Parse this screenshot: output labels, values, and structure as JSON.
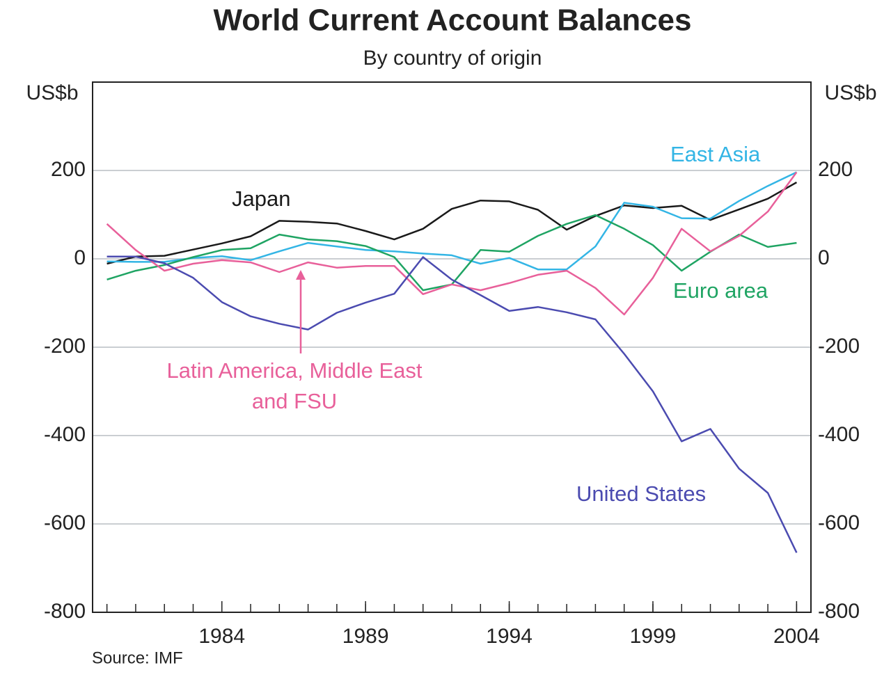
{
  "chart_data": {
    "type": "line",
    "title": "World Current Account Balances",
    "subtitle": "By country of origin",
    "ylabel": "US$b",
    "source": "Source: IMF",
    "x": [
      1980,
      1981,
      1982,
      1983,
      1984,
      1985,
      1986,
      1987,
      1988,
      1989,
      1990,
      1991,
      1992,
      1993,
      1994,
      1995,
      1996,
      1997,
      1998,
      1999,
      2000,
      2001,
      2002,
      2003,
      2004
    ],
    "xlim": [
      1979.5,
      2004.5
    ],
    "xticks": [
      1984,
      1989,
      1994,
      1999,
      2004
    ],
    "xminorticks": [
      1980,
      1981,
      1982,
      1983,
      1984,
      1985,
      1986,
      1987,
      1988,
      1989,
      1990,
      1991,
      1992,
      1993,
      1994,
      1995,
      1996,
      1997,
      1998,
      1999,
      2000,
      2001,
      2002,
      2003,
      2004
    ],
    "ylim": [
      -800,
      400
    ],
    "yticks": [
      -800,
      -600,
      -400,
      -200,
      0,
      200
    ],
    "grid": true,
    "series": [
      {
        "name": "Japan",
        "color": "#1a1a1a",
        "values": [
          -11,
          5,
          7,
          21,
          35,
          51,
          86,
          84,
          80,
          63,
          44,
          68,
          113,
          132,
          130,
          111,
          66,
          97,
          121,
          115,
          120,
          88,
          112,
          136,
          173
        ]
      },
      {
        "name": "East Asia",
        "color": "#33b5e5",
        "values": [
          -6,
          -7,
          -7,
          2,
          6,
          -3,
          17,
          36,
          28,
          20,
          17,
          12,
          8,
          -11,
          2,
          -24,
          -24,
          28,
          127,
          118,
          92,
          91,
          131,
          165,
          196
        ]
      },
      {
        "name": "Euro area",
        "color": "#1fa463",
        "values": [
          -47,
          -27,
          -14,
          4,
          20,
          24,
          55,
          44,
          40,
          29,
          4,
          -71,
          -58,
          20,
          16,
          52,
          79,
          99,
          68,
          31,
          -27,
          16,
          55,
          27,
          36
        ]
      },
      {
        "name": "Latin America, Middle East and FSU",
        "color": "#e8609a",
        "values": [
          79,
          20,
          -27,
          -11,
          -3,
          -8,
          -30,
          -8,
          -20,
          -16,
          -16,
          -80,
          -58,
          -71,
          -55,
          -36,
          -27,
          -66,
          -126,
          -43,
          68,
          17,
          52,
          107,
          196
        ]
      },
      {
        "name": "United States",
        "color": "#4b4bb0",
        "values": [
          5,
          5,
          -10,
          -43,
          -98,
          -130,
          -147,
          -160,
          -122,
          -99,
          -79,
          4,
          -47,
          -82,
          -118,
          -109,
          -121,
          -137,
          -215,
          -300,
          -413,
          -385,
          -475,
          -530,
          -665
        ]
      }
    ]
  }
}
